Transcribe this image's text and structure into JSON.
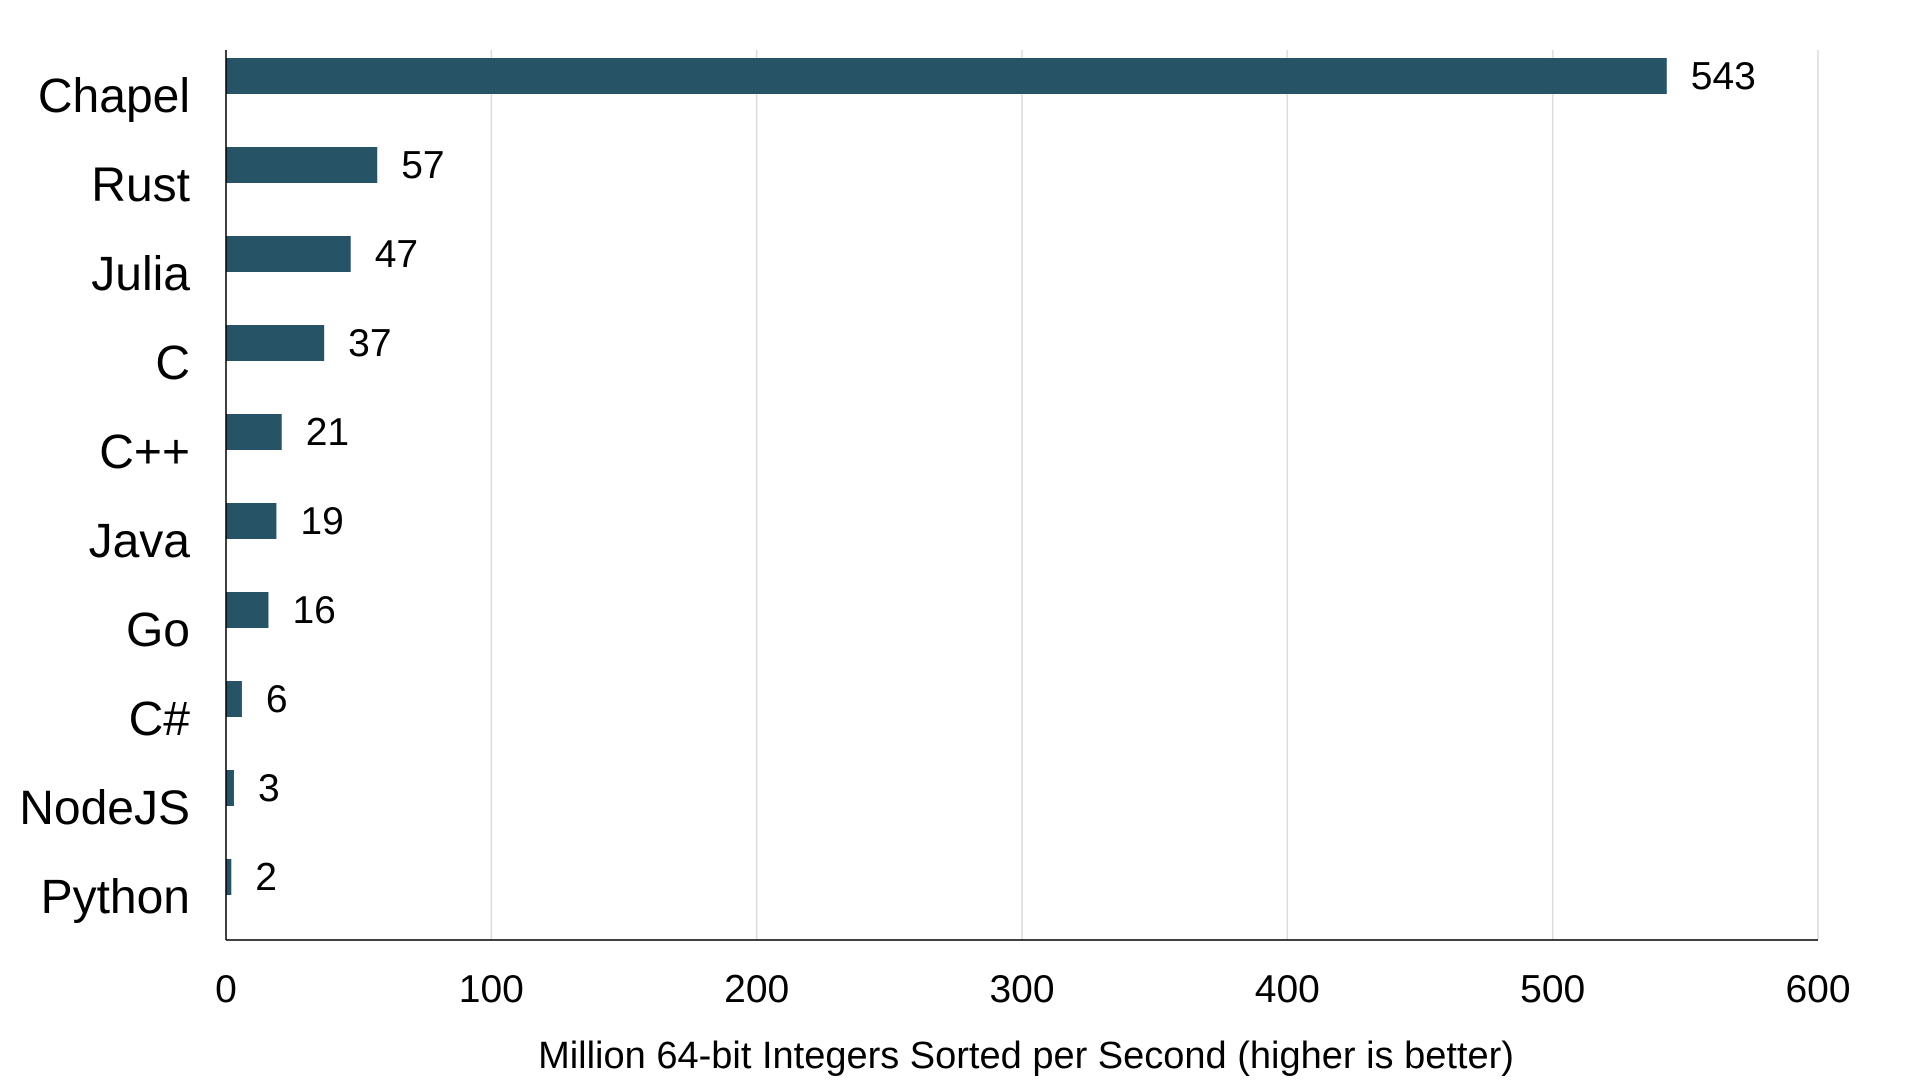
{
  "chart_data": {
    "type": "bar",
    "orientation": "horizontal",
    "title": "",
    "xlabel": "Million 64-bit Integers Sorted per Second (higher is better)",
    "ylabel": "",
    "xlim": [
      0,
      600
    ],
    "xticks": [
      0,
      100,
      200,
      300,
      400,
      500,
      600
    ],
    "grid": true,
    "categories": [
      "Chapel",
      "Rust",
      "Julia",
      "C",
      "C++",
      "Java",
      "Go",
      "C#",
      "NodeJS",
      "Python"
    ],
    "values": [
      543,
      57,
      47,
      37,
      21,
      19,
      16,
      6,
      3,
      2
    ],
    "data_labels": [
      "543",
      "57",
      "47",
      "37",
      "21",
      "19",
      "16",
      "6",
      "3",
      "2"
    ],
    "bar_color": "#265365",
    "grid_color": "#dcdcdc",
    "axis_color": "#000000"
  }
}
